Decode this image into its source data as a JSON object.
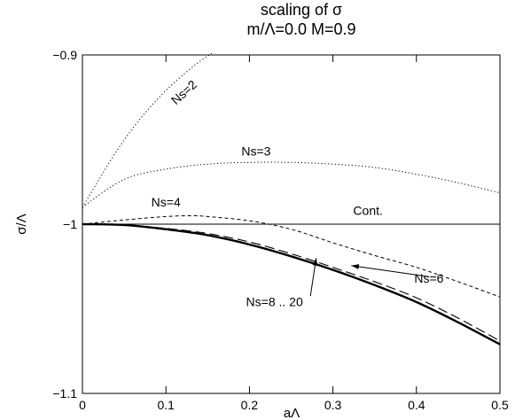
{
  "chart_data": {
    "type": "line",
    "title": "scaling of σ",
    "subtitle": "m/Λ=0.0 M=0.9",
    "xlabel": "aΛ",
    "ylabel": "σ/Λ",
    "xlim": [
      0,
      0.5
    ],
    "ylim": [
      -1.1,
      -0.9
    ],
    "xticks": [
      0,
      0.1,
      0.2,
      0.3,
      0.4,
      0.5
    ],
    "xtick_labels": [
      "0",
      "0.1",
      "0.2",
      "0.3",
      "0.4",
      "0.5"
    ],
    "yticks": [
      -1.1,
      -1.0,
      -0.9
    ],
    "ytick_labels": [
      "−1.1",
      "−1",
      "−0.9"
    ],
    "grid": false,
    "legend": "none",
    "series": [
      {
        "name": "Ns=2",
        "style": "dotted",
        "x": [
          0,
          0.02,
          0.04,
          0.06,
          0.08,
          0.1,
          0.12,
          0.14,
          0.155
        ],
        "y": [
          -0.99,
          -0.9735,
          -0.9575,
          -0.9435,
          -0.9315,
          -0.921,
          -0.912,
          -0.904,
          -0.899
        ]
      },
      {
        "name": "Ns=3",
        "style": "dotted",
        "x": [
          0,
          0.05,
          0.1,
          0.15,
          0.2,
          0.25,
          0.3,
          0.35,
          0.4,
          0.45,
          0.5
        ],
        "y": [
          -0.99,
          -0.9735,
          -0.9675,
          -0.9645,
          -0.9635,
          -0.9635,
          -0.9645,
          -0.9665,
          -0.9705,
          -0.9755,
          -0.9815
        ]
      },
      {
        "name": "Ns=4",
        "style": "dashed",
        "x": [
          0,
          0.05,
          0.1,
          0.13,
          0.15,
          0.2,
          0.25,
          0.3,
          0.35,
          0.4,
          0.45,
          0.5
        ],
        "y": [
          -1.0,
          -0.9975,
          -0.9955,
          -0.995,
          -0.9955,
          -0.998,
          -1.003,
          -1.011,
          -1.0185,
          -1.0255,
          -1.034,
          -1.043
        ]
      },
      {
        "name": "Cont.",
        "style": "solid",
        "x": [
          0,
          0.5
        ],
        "y": [
          -1.0,
          -1.0
        ]
      },
      {
        "name": "Ns=6",
        "style": "long-dashed",
        "x": [
          0,
          0.05,
          0.1,
          0.15,
          0.2,
          0.25,
          0.3,
          0.35,
          0.4,
          0.45,
          0.5
        ],
        "y": [
          -1.0,
          -1.0005,
          -1.0025,
          -1.0055,
          -1.0105,
          -1.0175,
          -1.0255,
          -1.034,
          -1.0435,
          -1.0555,
          -1.069
        ]
      },
      {
        "name": "Ns=8 .. 20",
        "style": "thick-solid",
        "x": [
          0,
          0.05,
          0.1,
          0.15,
          0.2,
          0.25,
          0.3,
          0.35,
          0.4,
          0.45,
          0.5
        ],
        "y": [
          -1.0,
          -1.0005,
          -1.003,
          -1.0065,
          -1.012,
          -1.019,
          -1.027,
          -1.036,
          -1.046,
          -1.058,
          -1.071
        ]
      }
    ],
    "annotations": [
      {
        "text": "Ns=2",
        "x": 0.125,
        "y": -0.924,
        "rotate": -42
      },
      {
        "text": "Ns=3",
        "x": 0.208,
        "y": -0.9595
      },
      {
        "text": "Ns=4",
        "x": 0.1,
        "y": -0.9895
      },
      {
        "text": "Cont.",
        "x": 0.342,
        "y": -0.9945
      },
      {
        "text": "Ns=6",
        "x": 0.415,
        "y": -1.0345
      },
      {
        "text": "Ns=8 .. 20",
        "x": 0.23,
        "y": -1.0485
      }
    ],
    "arrows": [
      {
        "from": [
          0.415,
          -1.031
        ],
        "to": [
          0.322,
          -1.0245
        ]
      },
      {
        "from": [
          0.273,
          -1.0425
        ],
        "to": [
          0.28,
          -1.02
        ]
      }
    ]
  }
}
